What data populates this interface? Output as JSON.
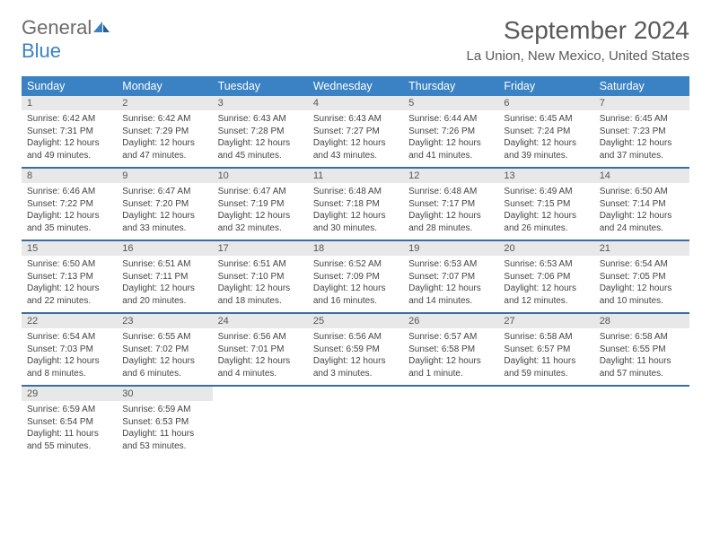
{
  "logo": {
    "general": "General",
    "blue": "Blue"
  },
  "title": "September 2024",
  "location": "La Union, New Mexico, United States",
  "colors": {
    "header_bg": "#3b82c4",
    "header_text": "#ffffff",
    "daynum_bg": "#e8e8e8",
    "border": "#3b6ea0",
    "text": "#444444",
    "title_text": "#595959"
  },
  "typography": {
    "title_fontsize": 28,
    "location_fontsize": 15,
    "dayhead_fontsize": 12.5,
    "body_fontsize": 10
  },
  "day_headers": [
    "Sunday",
    "Monday",
    "Tuesday",
    "Wednesday",
    "Thursday",
    "Friday",
    "Saturday"
  ],
  "weeks": [
    [
      {
        "n": "1",
        "sr": "Sunrise: 6:42 AM",
        "ss": "Sunset: 7:31 PM",
        "dl": "Daylight: 12 hours and 49 minutes."
      },
      {
        "n": "2",
        "sr": "Sunrise: 6:42 AM",
        "ss": "Sunset: 7:29 PM",
        "dl": "Daylight: 12 hours and 47 minutes."
      },
      {
        "n": "3",
        "sr": "Sunrise: 6:43 AM",
        "ss": "Sunset: 7:28 PM",
        "dl": "Daylight: 12 hours and 45 minutes."
      },
      {
        "n": "4",
        "sr": "Sunrise: 6:43 AM",
        "ss": "Sunset: 7:27 PM",
        "dl": "Daylight: 12 hours and 43 minutes."
      },
      {
        "n": "5",
        "sr": "Sunrise: 6:44 AM",
        "ss": "Sunset: 7:26 PM",
        "dl": "Daylight: 12 hours and 41 minutes."
      },
      {
        "n": "6",
        "sr": "Sunrise: 6:45 AM",
        "ss": "Sunset: 7:24 PM",
        "dl": "Daylight: 12 hours and 39 minutes."
      },
      {
        "n": "7",
        "sr": "Sunrise: 6:45 AM",
        "ss": "Sunset: 7:23 PM",
        "dl": "Daylight: 12 hours and 37 minutes."
      }
    ],
    [
      {
        "n": "8",
        "sr": "Sunrise: 6:46 AM",
        "ss": "Sunset: 7:22 PM",
        "dl": "Daylight: 12 hours and 35 minutes."
      },
      {
        "n": "9",
        "sr": "Sunrise: 6:47 AM",
        "ss": "Sunset: 7:20 PM",
        "dl": "Daylight: 12 hours and 33 minutes."
      },
      {
        "n": "10",
        "sr": "Sunrise: 6:47 AM",
        "ss": "Sunset: 7:19 PM",
        "dl": "Daylight: 12 hours and 32 minutes."
      },
      {
        "n": "11",
        "sr": "Sunrise: 6:48 AM",
        "ss": "Sunset: 7:18 PM",
        "dl": "Daylight: 12 hours and 30 minutes."
      },
      {
        "n": "12",
        "sr": "Sunrise: 6:48 AM",
        "ss": "Sunset: 7:17 PM",
        "dl": "Daylight: 12 hours and 28 minutes."
      },
      {
        "n": "13",
        "sr": "Sunrise: 6:49 AM",
        "ss": "Sunset: 7:15 PM",
        "dl": "Daylight: 12 hours and 26 minutes."
      },
      {
        "n": "14",
        "sr": "Sunrise: 6:50 AM",
        "ss": "Sunset: 7:14 PM",
        "dl": "Daylight: 12 hours and 24 minutes."
      }
    ],
    [
      {
        "n": "15",
        "sr": "Sunrise: 6:50 AM",
        "ss": "Sunset: 7:13 PM",
        "dl": "Daylight: 12 hours and 22 minutes."
      },
      {
        "n": "16",
        "sr": "Sunrise: 6:51 AM",
        "ss": "Sunset: 7:11 PM",
        "dl": "Daylight: 12 hours and 20 minutes."
      },
      {
        "n": "17",
        "sr": "Sunrise: 6:51 AM",
        "ss": "Sunset: 7:10 PM",
        "dl": "Daylight: 12 hours and 18 minutes."
      },
      {
        "n": "18",
        "sr": "Sunrise: 6:52 AM",
        "ss": "Sunset: 7:09 PM",
        "dl": "Daylight: 12 hours and 16 minutes."
      },
      {
        "n": "19",
        "sr": "Sunrise: 6:53 AM",
        "ss": "Sunset: 7:07 PM",
        "dl": "Daylight: 12 hours and 14 minutes."
      },
      {
        "n": "20",
        "sr": "Sunrise: 6:53 AM",
        "ss": "Sunset: 7:06 PM",
        "dl": "Daylight: 12 hours and 12 minutes."
      },
      {
        "n": "21",
        "sr": "Sunrise: 6:54 AM",
        "ss": "Sunset: 7:05 PM",
        "dl": "Daylight: 12 hours and 10 minutes."
      }
    ],
    [
      {
        "n": "22",
        "sr": "Sunrise: 6:54 AM",
        "ss": "Sunset: 7:03 PM",
        "dl": "Daylight: 12 hours and 8 minutes."
      },
      {
        "n": "23",
        "sr": "Sunrise: 6:55 AM",
        "ss": "Sunset: 7:02 PM",
        "dl": "Daylight: 12 hours and 6 minutes."
      },
      {
        "n": "24",
        "sr": "Sunrise: 6:56 AM",
        "ss": "Sunset: 7:01 PM",
        "dl": "Daylight: 12 hours and 4 minutes."
      },
      {
        "n": "25",
        "sr": "Sunrise: 6:56 AM",
        "ss": "Sunset: 6:59 PM",
        "dl": "Daylight: 12 hours and 3 minutes."
      },
      {
        "n": "26",
        "sr": "Sunrise: 6:57 AM",
        "ss": "Sunset: 6:58 PM",
        "dl": "Daylight: 12 hours and 1 minute."
      },
      {
        "n": "27",
        "sr": "Sunrise: 6:58 AM",
        "ss": "Sunset: 6:57 PM",
        "dl": "Daylight: 11 hours and 59 minutes."
      },
      {
        "n": "28",
        "sr": "Sunrise: 6:58 AM",
        "ss": "Sunset: 6:55 PM",
        "dl": "Daylight: 11 hours and 57 minutes."
      }
    ],
    [
      {
        "n": "29",
        "sr": "Sunrise: 6:59 AM",
        "ss": "Sunset: 6:54 PM",
        "dl": "Daylight: 11 hours and 55 minutes."
      },
      {
        "n": "30",
        "sr": "Sunrise: 6:59 AM",
        "ss": "Sunset: 6:53 PM",
        "dl": "Daylight: 11 hours and 53 minutes."
      },
      null,
      null,
      null,
      null,
      null
    ]
  ]
}
